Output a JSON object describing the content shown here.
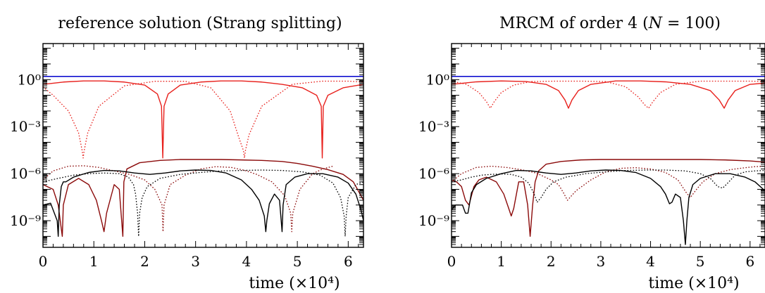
{
  "chart_data": [
    {
      "type": "line",
      "title": "reference solution (Strang splitting)",
      "xlabel": "time (×10⁴)",
      "ylabel": "",
      "x_ticks": [
        "0",
        "1",
        "2",
        "3",
        "4",
        "5",
        "6"
      ],
      "y_ticks": [
        "10⁰",
        "10⁻³",
        "10⁻⁶",
        "10⁻⁹"
      ],
      "xlim": [
        0,
        6.3
      ],
      "ylim_log10": [
        -10.7,
        2.3
      ],
      "log_scale_y": true,
      "grid": false,
      "series_styles": [
        {
          "color": "#0000cc",
          "dash": "solid"
        },
        {
          "color": "#e8201c",
          "dash": "solid"
        },
        {
          "color": "#e8201c",
          "dash": "dotted"
        },
        {
          "color": "#8b0a0a",
          "dash": "solid"
        },
        {
          "color": "#8b0a0a",
          "dash": "dotted"
        },
        {
          "color": "#000000",
          "dash": "solid"
        },
        {
          "color": "#000000",
          "dash": "dotted"
        }
      ],
      "series": [
        {
          "x": [
            0,
            6.3
          ],
          "y": [
            1.6,
            1.6
          ]
        },
        {
          "x": [
            0,
            0.4,
            0.8,
            1.2,
            1.6,
            2.0,
            2.25,
            2.33,
            2.355,
            2.38,
            2.46,
            2.7,
            3.1,
            3.5,
            3.9,
            4.3,
            4.7,
            5.1,
            5.38,
            5.47,
            5.49,
            5.51,
            5.6,
            5.9,
            6.3
          ],
          "y": [
            0.5,
            0.7,
            0.82,
            0.82,
            0.7,
            0.45,
            0.12,
            0.02,
            1e-05,
            0.02,
            0.12,
            0.45,
            0.7,
            0.82,
            0.82,
            0.7,
            0.5,
            0.3,
            0.1,
            0.02,
            1e-05,
            0.02,
            0.1,
            0.3,
            0.5
          ]
        },
        {
          "x": [
            0,
            0.2,
            0.5,
            0.7,
            0.77,
            0.79,
            0.81,
            0.88,
            1.1,
            1.6,
            2.2,
            2.8,
            3.3,
            3.68,
            3.85,
            3.94,
            3.96,
            3.98,
            4.05,
            4.3,
            4.9,
            5.5,
            6.0,
            6.3
          ],
          "y": [
            0.35,
            0.1,
            0.01,
            0.0004,
            3e-05,
            1e-05,
            3e-05,
            0.0004,
            0.02,
            0.4,
            0.78,
            0.78,
            0.3,
            0.01,
            0.0002,
            3e-05,
            1e-05,
            3e-05,
            0.0003,
            0.02,
            0.5,
            0.8,
            0.8,
            0.7
          ]
        },
        {
          "x": [
            0,
            0.2,
            0.3,
            0.36,
            0.38,
            0.4,
            0.5,
            0.7,
            0.9,
            1.05,
            1.15,
            1.2,
            1.25,
            1.4,
            1.5,
            1.57,
            1.59,
            1.65,
            1.9,
            2.3,
            2.7,
            3.1,
            3.5,
            3.9,
            4.3,
            4.7,
            5.0,
            5.3,
            5.6,
            5.9,
            6.1,
            6.25,
            6.3
          ],
          "y": [
            2e-07,
            1e-07,
            1e-08,
            3e-10,
            1e-10,
            1e-08,
            2e-07,
            5e-07,
            2e-07,
            2e-08,
            1e-09,
            2e-10,
            3e-09,
            2e-07,
            1e-07,
            1e-10,
            3e-07,
            2e-06,
            5e-06,
            7e-06,
            8e-06,
            8e-06,
            8e-06,
            7.5e-06,
            7e-06,
            6e-06,
            4.5e-06,
            3e-06,
            1.8e-06,
            9e-07,
            3e-07,
            4e-08,
            2e-08
          ]
        },
        {
          "x": [
            0,
            0.2,
            0.5,
            0.8,
            1.1,
            1.4,
            1.7,
            2.0,
            2.2,
            2.34,
            2.36,
            2.38,
            2.5,
            2.8,
            3.1,
            3.4,
            3.7,
            3.9,
            4.0,
            4.2,
            4.5,
            4.75,
            4.87,
            4.89,
            4.91,
            5.05,
            5.3,
            5.5,
            5.7
          ],
          "y": [
            4e-07,
            1.5e-06,
            3e-06,
            3.2e-06,
            2.5e-06,
            1.5e-06,
            9e-07,
            4e-07,
            1e-07,
            1e-08,
            2e-10,
            1e-08,
            2e-07,
            8e-07,
            2e-06,
            2.8e-06,
            2.5e-06,
            1.8e-06,
            1.5e-06,
            9e-07,
            3e-07,
            4e-08,
            3e-09,
            2e-10,
            3e-09,
            1e-07,
            1e-06,
            2e-06,
            3e-06
          ]
        },
        {
          "x": [
            0,
            0.15,
            0.28,
            0.3,
            0.32,
            0.36,
            0.4,
            0.45,
            0.6,
            0.9,
            1.2,
            1.5,
            1.8,
            2.1,
            2.4,
            2.7,
            3.0,
            3.3,
            3.6,
            3.9,
            4.1,
            4.25,
            4.35,
            4.38,
            4.4,
            4.45,
            4.55,
            4.65,
            4.7,
            4.72,
            4.78,
            4.95,
            5.2,
            5.5,
            5.8,
            6.0,
            6.15,
            6.25,
            6.3
          ],
          "y": [
            1e-08,
            1.3e-08,
            1e-09,
            1e-10,
            1e-08,
            1.5e-07,
            3e-07,
            3e-07,
            6e-07,
            1.2e-06,
            1.6e-06,
            1.5e-06,
            1.1e-06,
            9e-07,
            1.1e-06,
            1.5e-06,
            1.7e-06,
            1.6e-06,
            1.1e-06,
            4e-07,
            1e-07,
            2e-08,
            2e-09,
            2e-10,
            1e-09,
            1.2e-08,
            5e-08,
            2e-08,
            2e-10,
            1e-08,
            2e-07,
            6e-07,
            1e-06,
            1e-06,
            6e-07,
            2.5e-07,
            5e-08,
            5e-09,
            1e-09
          ]
        },
        {
          "x": [
            0,
            0.3,
            0.6,
            0.9,
            1.2,
            1.5,
            1.68,
            1.78,
            1.82,
            1.86,
            1.88,
            1.9,
            1.95,
            2.05,
            2.3,
            2.7,
            3.1,
            3.5,
            3.9,
            4.3,
            4.7,
            5.1,
            5.45,
            5.7,
            5.85,
            5.92,
            5.94,
            5.96,
            6.0,
            6.15,
            6.3
          ],
          "y": [
            3e-07,
            5e-07,
            8e-07,
            1e-06,
            1.1e-06,
            1e-06,
            6e-07,
            2e-07,
            5e-08,
            3e-09,
            1e-10,
            3e-09,
            3e-08,
            1.5e-07,
            5e-07,
            9e-07,
            1.2e-06,
            1.5e-06,
            1.6e-06,
            1.7e-06,
            1.6e-06,
            1.3e-06,
            8e-07,
            2.5e-07,
            3e-08,
            2e-09,
            1e-10,
            2e-09,
            3e-08,
            2e-07,
            3e-07
          ]
        }
      ]
    },
    {
      "type": "line",
      "title": "MRCM of order 4 (N = 100)",
      "title_parts": [
        "MRCM of order 4 (",
        "N",
        " = 100)"
      ],
      "xlabel": "time (×10⁴)",
      "ylabel": "",
      "x_ticks": [
        "0",
        "1",
        "2",
        "3",
        "4",
        "5",
        "6"
      ],
      "y_ticks": [
        "10⁰",
        "10⁻³",
        "10⁻⁶",
        "10⁻⁹"
      ],
      "xlim": [
        0,
        6.3
      ],
      "ylim_log10": [
        -10.7,
        2.3
      ],
      "log_scale_y": true,
      "grid": false,
      "series_styles": [
        {
          "color": "#0000cc",
          "dash": "solid"
        },
        {
          "color": "#e8201c",
          "dash": "solid"
        },
        {
          "color": "#e8201c",
          "dash": "dotted"
        },
        {
          "color": "#8b0a0a",
          "dash": "solid"
        },
        {
          "color": "#8b0a0a",
          "dash": "dotted"
        },
        {
          "color": "#000000",
          "dash": "solid"
        },
        {
          "color": "#000000",
          "dash": "dotted"
        }
      ],
      "series": [
        {
          "x": [
            0,
            6.3
          ],
          "y": [
            1.6,
            1.6
          ]
        },
        {
          "x": [
            0,
            0.5,
            1.0,
            1.5,
            1.9,
            2.15,
            2.28,
            2.35,
            2.42,
            2.55,
            2.8,
            3.3,
            3.8,
            4.3,
            4.8,
            5.2,
            5.38,
            5.48,
            5.56,
            5.7,
            6.0,
            6.3
          ],
          "y": [
            0.5,
            0.72,
            0.82,
            0.75,
            0.5,
            0.2,
            0.05,
            0.015,
            0.05,
            0.2,
            0.5,
            0.82,
            0.82,
            0.72,
            0.5,
            0.2,
            0.05,
            0.015,
            0.05,
            0.2,
            0.5,
            0.6
          ]
        },
        {
          "x": [
            0,
            0.3,
            0.55,
            0.7,
            0.78,
            0.86,
            1.0,
            1.25,
            1.6,
            2.1,
            2.6,
            3.1,
            3.5,
            3.75,
            3.88,
            3.96,
            4.05,
            4.2,
            4.5,
            5.0,
            5.5,
            6.0,
            6.3
          ],
          "y": [
            0.8,
            0.5,
            0.15,
            0.04,
            0.015,
            0.04,
            0.15,
            0.45,
            0.75,
            0.8,
            0.8,
            0.75,
            0.35,
            0.08,
            0.025,
            0.015,
            0.04,
            0.15,
            0.5,
            0.8,
            0.8,
            0.8,
            0.75
          ]
        },
        {
          "x": [
            0,
            0.1,
            0.2,
            0.28,
            0.35,
            0.45,
            0.55,
            0.7,
            0.9,
            1.05,
            1.15,
            1.2,
            1.25,
            1.35,
            1.45,
            1.53,
            1.58,
            1.63,
            1.68,
            1.75,
            1.9,
            2.2,
            2.6,
            3.0,
            3.5,
            4.0,
            4.5,
            5.0,
            5.5,
            6.0,
            6.3
          ],
          "y": [
            4e-07,
            3e-07,
            1.5e-07,
            2e-08,
            1e-08,
            1.5e-07,
            4e-07,
            6e-07,
            3e-07,
            5e-08,
            6e-09,
            2e-09,
            6e-09,
            3e-07,
            3e-07,
            1e-08,
            1e-10,
            1e-08,
            3e-07,
            1.5e-06,
            4e-06,
            6e-06,
            7.5e-06,
            8e-06,
            8e-06,
            8e-06,
            8e-06,
            8e-06,
            7.5e-06,
            6.5e-06,
            5.5e-06
          ]
        },
        {
          "x": [
            0,
            0.2,
            0.5,
            0.8,
            1.1,
            1.4,
            1.7,
            2.0,
            2.15,
            2.25,
            2.33,
            2.5,
            2.8,
            3.1,
            3.4,
            3.7,
            4.0,
            4.3,
            4.55,
            4.72,
            4.8,
            4.9,
            5.05,
            5.3,
            5.6,
            5.9,
            6.1,
            6.3
          ],
          "y": [
            3e-07,
            1e-06,
            2.5e-06,
            3e-06,
            2.5e-06,
            1.8e-06,
            1.1e-06,
            4e-07,
            2e-07,
            6e-08,
            2e-08,
            8e-08,
            4e-07,
            1.3e-06,
            2.2e-06,
            2.4e-06,
            2e-06,
            1.2e-06,
            4e-07,
            6e-08,
            3e-08,
            8e-08,
            3e-07,
            1e-06,
            1.8e-06,
            2.4e-06,
            2.8e-06,
            3e-06
          ]
        },
        {
          "x": [
            0,
            0.08,
            0.15,
            0.22,
            0.28,
            0.33,
            0.4,
            0.5,
            0.7,
            1.0,
            1.3,
            1.6,
            1.9,
            2.2,
            2.5,
            2.8,
            3.1,
            3.4,
            3.7,
            4.0,
            4.2,
            4.3,
            4.38,
            4.43,
            4.5,
            4.6,
            4.66,
            4.7,
            4.73,
            4.77,
            4.85,
            5.0,
            5.3,
            5.6,
            5.9,
            6.1,
            6.3
          ],
          "y": [
            5e-09,
            1e-08,
            1e-08,
            1e-08,
            3e-09,
            3e-09,
            6e-08,
            2e-07,
            5e-07,
            1e-06,
            1.6e-06,
            1.5e-06,
            1.1e-06,
            9e-07,
            1.1e-06,
            1.5e-06,
            1.7e-06,
            1.6e-06,
            1.2e-06,
            5e-07,
            1.5e-07,
            5e-08,
            1.2e-08,
            1.5e-08,
            5e-08,
            3e-08,
            1e-09,
            3e-11,
            1e-09,
            3e-08,
            2e-07,
            5e-07,
            1e-06,
            1e-06,
            6e-07,
            3e-07,
            8e-08
          ]
        },
        {
          "x": [
            0,
            0.2,
            0.4,
            0.6,
            0.8,
            1.0,
            1.2,
            1.4,
            1.55,
            1.65,
            1.72,
            1.8,
            1.9,
            2.05,
            2.3,
            2.7,
            3.1,
            3.5,
            3.9,
            4.3,
            4.7,
            5.0,
            5.2,
            5.35,
            5.45,
            5.55,
            5.7,
            5.9,
            6.1,
            6.3
          ],
          "y": [
            3e-07,
            4e-07,
            6e-07,
            8e-07,
            9e-07,
            9.5e-07,
            9e-07,
            6e-07,
            2.5e-07,
            6e-08,
            1.5e-08,
            3e-08,
            1e-07,
            3e-07,
            6e-07,
            1e-06,
            1.3e-06,
            1.6e-06,
            1.7e-06,
            1.7e-06,
            1.5e-06,
            1e-06,
            5e-07,
            1.5e-07,
            1.2e-07,
            2.5e-07,
            8e-07,
            1.3e-06,
            1.5e-06,
            1.6e-06
          ]
        }
      ]
    }
  ]
}
